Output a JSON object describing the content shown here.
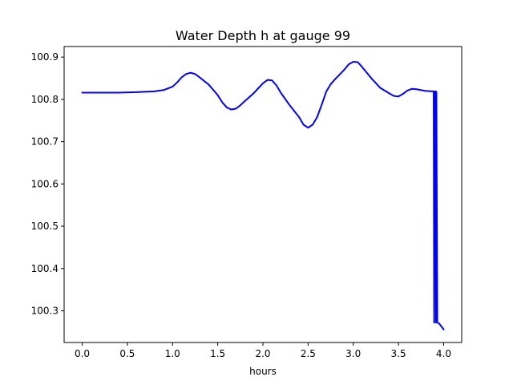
{
  "chart_data": {
    "type": "line",
    "title": "Water Depth h at gauge 99",
    "xlabel": "hours",
    "ylabel": "",
    "xlim": [
      -0.2,
      4.2
    ],
    "ylim": [
      100.225,
      100.925
    ],
    "xticks": [
      0.0,
      0.5,
      1.0,
      1.5,
      2.0,
      2.5,
      3.0,
      3.5,
      4.0
    ],
    "xtick_labels": [
      "0.0",
      "0.5",
      "1.0",
      "1.5",
      "2.0",
      "2.5",
      "3.0",
      "3.5",
      "4.0"
    ],
    "yticks": [
      100.3,
      100.4,
      100.5,
      100.6,
      100.7,
      100.8,
      100.9
    ],
    "ytick_labels": [
      "100.3",
      "100.4",
      "100.5",
      "100.6",
      "100.7",
      "100.8",
      "100.9"
    ],
    "grid": false,
    "colors": {
      "series": "#0000ff",
      "axes": "#000000",
      "background": "#ffffff"
    },
    "series": [
      {
        "x": [
          0.0,
          0.2,
          0.4,
          0.6,
          0.8,
          0.9,
          1.0,
          1.05,
          1.1,
          1.15,
          1.2,
          1.25,
          1.3,
          1.4,
          1.5,
          1.55,
          1.6,
          1.65,
          1.7,
          1.75,
          1.8,
          1.9,
          2.0,
          2.05,
          2.1,
          2.15,
          2.2,
          2.3,
          2.4,
          2.45,
          2.5,
          2.55,
          2.6,
          2.65,
          2.7,
          2.75,
          2.8,
          2.9,
          2.95,
          3.0,
          3.05,
          3.1,
          3.2,
          3.3,
          3.4,
          3.45,
          3.5,
          3.55,
          3.6,
          3.65,
          3.7,
          3.8,
          3.88,
          3.89,
          3.895,
          3.9,
          3.91,
          3.915,
          3.92,
          3.93,
          3.95,
          4.0
        ],
        "y": [
          100.816,
          100.816,
          100.816,
          100.817,
          100.819,
          100.822,
          100.83,
          100.84,
          100.852,
          100.86,
          100.863,
          100.86,
          100.852,
          100.835,
          100.81,
          100.793,
          100.781,
          100.776,
          100.778,
          100.786,
          100.796,
          100.815,
          100.838,
          100.846,
          100.845,
          100.833,
          100.815,
          100.785,
          100.758,
          100.74,
          100.733,
          100.74,
          100.758,
          100.787,
          100.818,
          100.836,
          100.848,
          100.87,
          100.883,
          100.889,
          100.888,
          100.876,
          100.85,
          100.827,
          100.814,
          100.808,
          100.807,
          100.813,
          100.821,
          100.825,
          100.824,
          100.82,
          100.819,
          100.819,
          100.272,
          100.819,
          100.819,
          100.272,
          100.818,
          100.272,
          100.27,
          100.256
        ]
      }
    ]
  }
}
